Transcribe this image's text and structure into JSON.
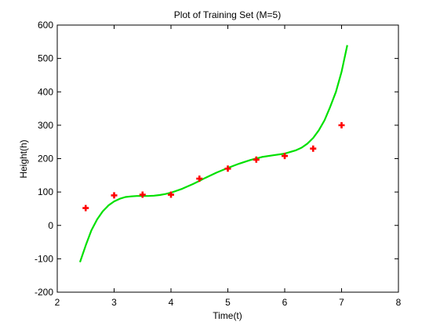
{
  "chart_data": {
    "type": "scatter",
    "title": "Plot of Training Set (M=5)",
    "xlabel": "Time(t)",
    "ylabel": "Height(h)",
    "xlim": [
      2,
      8
    ],
    "ylim": [
      -200,
      600
    ],
    "xticks": [
      2,
      3,
      4,
      5,
      6,
      7,
      8
    ],
    "yticks": [
      -200,
      -100,
      0,
      100,
      200,
      300,
      400,
      500,
      600
    ],
    "grid": false,
    "legend": "none",
    "series": [
      {
        "kind": "scatter",
        "marker": "plus",
        "color": "#ff0000",
        "x": [
          2.5,
          3.0,
          3.5,
          4.0,
          4.5,
          5.0,
          5.5,
          6.0,
          6.5,
          7.0
        ],
        "y": [
          52,
          90,
          92,
          92,
          140,
          170,
          197,
          208,
          230,
          300
        ]
      },
      {
        "kind": "line",
        "color": "#00e000",
        "x": [
          2.4,
          2.5,
          2.6,
          2.7,
          2.8,
          2.9,
          3.0,
          3.1,
          3.2,
          3.3,
          3.4,
          3.5,
          3.6,
          3.7,
          3.8,
          3.9,
          4.0,
          4.2,
          4.4,
          4.6,
          4.8,
          5.0,
          5.2,
          5.4,
          5.6,
          5.8,
          6.0,
          6.2,
          6.3,
          6.4,
          6.5,
          6.6,
          6.7,
          6.8,
          6.9,
          7.0,
          7.1
        ],
        "y": [
          -110,
          -60,
          -15,
          18,
          42,
          60,
          72,
          80,
          85,
          87,
          88,
          88,
          88,
          89,
          91,
          94,
          98,
          110,
          125,
          142,
          158,
          172,
          185,
          196,
          205,
          210,
          215,
          225,
          233,
          245,
          262,
          285,
          315,
          355,
          400,
          460,
          540
        ]
      }
    ]
  }
}
